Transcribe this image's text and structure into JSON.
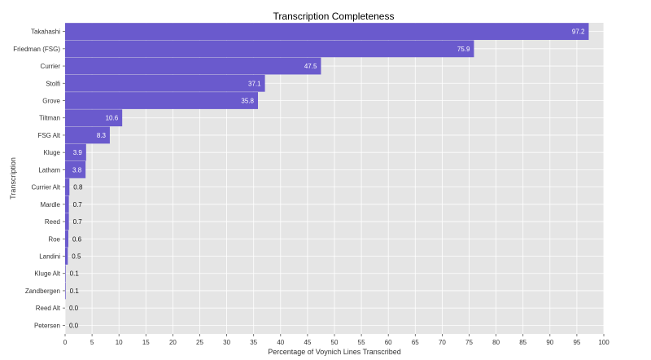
{
  "chart_data": {
    "type": "bar",
    "orientation": "horizontal",
    "title": "Transcription Completeness",
    "xlabel": "Percentage of Voynich Lines Transcribed",
    "ylabel": "Transcription",
    "xlim": [
      0,
      100
    ],
    "xticks": [
      "0",
      "5",
      "10",
      "15",
      "20",
      "25",
      "30",
      "35",
      "40",
      "45",
      "50",
      "55",
      "60",
      "65",
      "70",
      "75",
      "80",
      "85",
      "90",
      "95",
      "100"
    ],
    "grid": true,
    "categories": [
      "Takahashi",
      "Friedman (FSG)",
      "Currier",
      "Stolfi",
      "Grove",
      "Tiltman",
      "FSG Alt",
      "Kluge",
      "Latham",
      "Currier Alt",
      "Mardle",
      "Reed",
      "Roe",
      "Landini",
      "Kluge Alt",
      "Zandbergen",
      "Reed Alt",
      "Petersen"
    ],
    "values": [
      97.2,
      75.9,
      47.5,
      37.1,
      35.8,
      10.6,
      8.3,
      3.9,
      3.8,
      0.8,
      0.7,
      0.7,
      0.6,
      0.5,
      0.1,
      0.1,
      0.0,
      0.0
    ],
    "labels": [
      "97.2",
      "75.9",
      "47.5",
      "37.1",
      "35.8",
      "10.6",
      "8.3",
      "3.9",
      "3.8",
      "0.8",
      "0.7",
      "0.7",
      "0.6",
      "0.5",
      "0.1",
      "0.1",
      "0.0",
      "0.0"
    ],
    "bar_color": "#6a5acd",
    "panel_color": "#e5e5e5"
  }
}
